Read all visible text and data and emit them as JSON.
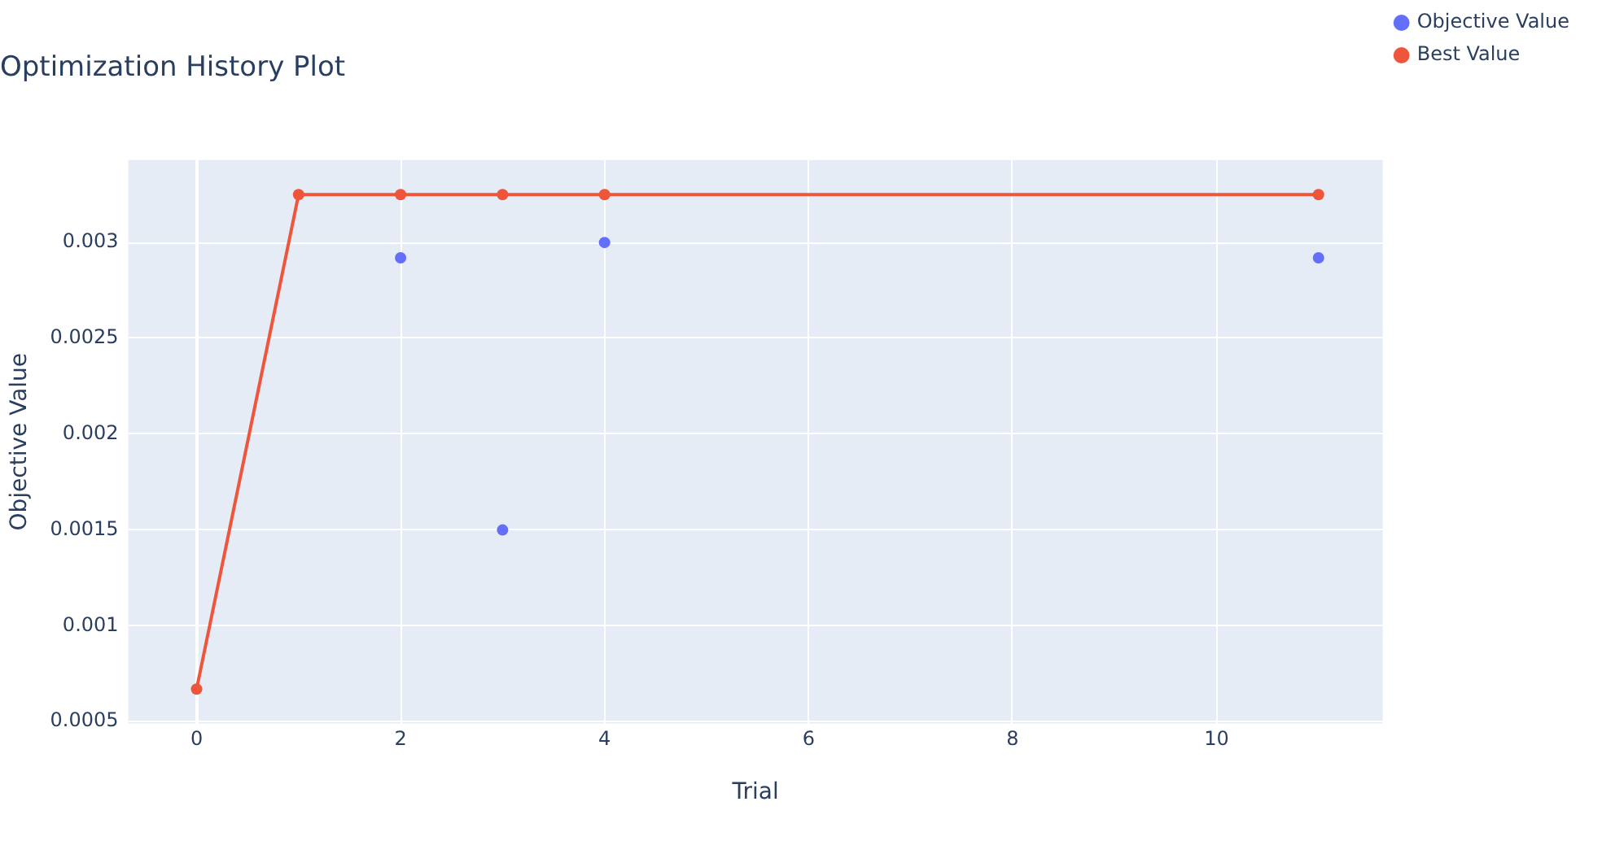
{
  "chart_data": {
    "type": "scatter",
    "title": "Optimization History Plot",
    "xlabel": "Trial",
    "ylabel": "Objective Value",
    "xlim": [
      -0.67,
      11.63
    ],
    "xticks": [
      0,
      2,
      4,
      6,
      8,
      10
    ],
    "ylim": [
      0.00049,
      0.00343
    ],
    "yticks": [
      0.0005,
      0.001,
      0.0015,
      0.002,
      0.0025,
      0.003
    ],
    "grid": true,
    "legend": "top right",
    "marker": "circle",
    "line_style": "solid",
    "series": [
      {
        "name": "Objective Value",
        "color": "#636efa",
        "x": [
          2,
          3,
          4,
          11
        ],
        "values": [
          0.00292,
          0.0015,
          0.003,
          0.00292
        ]
      },
      {
        "name": "Best Value",
        "type": "line",
        "color": "#ef553b",
        "x": [
          0,
          1,
          2,
          3,
          4,
          11
        ],
        "values": [
          0.00067,
          0.00325,
          0.00325,
          0.00325,
          0.00325,
          0.00325
        ]
      }
    ]
  }
}
